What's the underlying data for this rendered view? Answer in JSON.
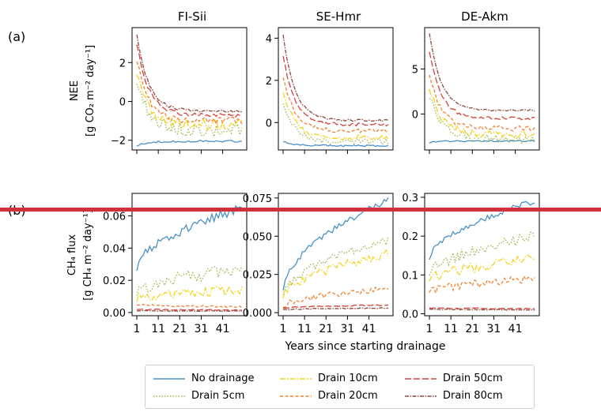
{
  "panel_labels": {
    "a": "(a)",
    "b": "(b)"
  },
  "site_titles": [
    "FI-Sii",
    "SE-Hmr",
    "DE-Akm"
  ],
  "row_a_ylabel": {
    "line1": "NEE",
    "line2": "[g CO₂ m⁻² day⁻¹]"
  },
  "row_b_ylabel": {
    "line1": "CH₄ flux",
    "line2": "[g CH₄ m⁻² day⁻¹]"
  },
  "xlabel": "Years since starting drainage",
  "legend": [
    {
      "name": "No drainage",
      "color": "#4a90c8",
      "dash": ""
    },
    {
      "name": "Drain 5cm",
      "color": "#9fb54c",
      "dash": "1.5,2"
    },
    {
      "name": "Drain 10cm",
      "color": "#f5d21c",
      "dash": "7,2,1.5,2"
    },
    {
      "name": "Drain 20cm",
      "color": "#f0812e",
      "dash": "4,2.5"
    },
    {
      "name": "Drain 50cm",
      "color": "#d6403c",
      "dash": "8,3"
    },
    {
      "name": "Drain 80cm",
      "color": "#8b4a3c",
      "dash": "5,1.5,1.5,1.5"
    }
  ],
  "chart_data": [
    {
      "type": "line",
      "panel": "(a)",
      "title": "FI-Sii",
      "x": [
        1,
        50
      ],
      "xticks": [
        "1",
        "11",
        "21",
        "31",
        "41"
      ],
      "ylim": [
        -2.5,
        3.8
      ],
      "yticks": [
        "−2",
        "0",
        "2"
      ],
      "ytick_values": [
        -2,
        0,
        2
      ],
      "series": [
        {
          "name": "No drainage",
          "start": -2.25,
          "end": -2.05,
          "noise": 0.05
        },
        {
          "name": "Drain 5cm",
          "start": 1.2,
          "end": -1.5,
          "noise": 0.35
        },
        {
          "name": "Drain 10cm",
          "start": 1.6,
          "end": -1.2,
          "noise": 0.28
        },
        {
          "name": "Drain 20cm",
          "start": 2.2,
          "end": -1.0,
          "noise": 0.18
        },
        {
          "name": "Drain 50cm",
          "start": 3.0,
          "end": -0.7,
          "noise": 0.1
        },
        {
          "name": "Drain 80cm",
          "start": 3.5,
          "end": -0.5,
          "noise": 0.07
        }
      ]
    },
    {
      "type": "line",
      "panel": "(a)",
      "title": "SE-Hmr",
      "x": [
        1,
        50
      ],
      "xticks": [
        "1",
        "11",
        "21",
        "31",
        "41"
      ],
      "ylim": [
        -1.3,
        4.5
      ],
      "yticks": [
        "0",
        "2",
        "4"
      ],
      "ytick_values": [
        0,
        2,
        4
      ],
      "series": [
        {
          "name": "No drainage",
          "start": -0.9,
          "end": -1.1,
          "noise": 0.04
        },
        {
          "name": "Drain 5cm",
          "start": 1.0,
          "end": -0.9,
          "noise": 0.15
        },
        {
          "name": "Drain 10cm",
          "start": 1.5,
          "end": -0.7,
          "noise": 0.12
        },
        {
          "name": "Drain 20cm",
          "start": 2.2,
          "end": -0.4,
          "noise": 0.1
        },
        {
          "name": "Drain 50cm",
          "start": 3.2,
          "end": -0.1,
          "noise": 0.07
        },
        {
          "name": "Drain 80cm",
          "start": 4.2,
          "end": 0.1,
          "noise": 0.05
        }
      ]
    },
    {
      "type": "line",
      "panel": "(a)",
      "title": "DE-Akm",
      "x": [
        1,
        50
      ],
      "xticks": [
        "1",
        "11",
        "21",
        "31",
        "41"
      ],
      "ylim": [
        -4.0,
        9.6
      ],
      "yticks": [
        "0",
        "5"
      ],
      "ytick_values": [
        0,
        5
      ],
      "series": [
        {
          "name": "No drainage",
          "start": -3.2,
          "end": -3.0,
          "noise": 0.1
        },
        {
          "name": "Drain 5cm",
          "start": 2.0,
          "end": -2.8,
          "noise": 0.55
        },
        {
          "name": "Drain 10cm",
          "start": 3.0,
          "end": -2.2,
          "noise": 0.45
        },
        {
          "name": "Drain 20cm",
          "start": 4.5,
          "end": -1.6,
          "noise": 0.3
        },
        {
          "name": "Drain 50cm",
          "start": 7.0,
          "end": -0.5,
          "noise": 0.18
        },
        {
          "name": "Drain 80cm",
          "start": 9.0,
          "end": 0.4,
          "noise": 0.1
        }
      ]
    },
    {
      "type": "line",
      "panel": "(b)",
      "title": "FI-Sii",
      "x": [
        1,
        50
      ],
      "xticks": [
        "1",
        "11",
        "21",
        "31",
        "41"
      ],
      "ylim": [
        -0.002,
        0.074
      ],
      "yticks": [
        "0.00",
        "0.02",
        "0.04",
        "0.06"
      ],
      "ytick_values": [
        0,
        0.02,
        0.04,
        0.06
      ],
      "series": [
        {
          "name": "No drainage",
          "start": 0.027,
          "end": 0.065,
          "noise": 0.003
        },
        {
          "name": "Drain 5cm",
          "start": 0.012,
          "end": 0.027,
          "noise": 0.004
        },
        {
          "name": "Drain 10cm",
          "start": 0.008,
          "end": 0.014,
          "noise": 0.003
        },
        {
          "name": "Drain 20cm",
          "start": 0.005,
          "end": 0.0035,
          "noise": 0.0006
        },
        {
          "name": "Drain 50cm",
          "start": 0.002,
          "end": 0.0015,
          "noise": 0.0003
        },
        {
          "name": "Drain 80cm",
          "start": 0.001,
          "end": 0.001,
          "noise": 0.0002
        }
      ]
    },
    {
      "type": "line",
      "panel": "(b)",
      "title": "SE-Hmr",
      "x": [
        1,
        50
      ],
      "xticks": [
        "1",
        "11",
        "21",
        "31",
        "41"
      ],
      "ylim": [
        -0.002,
        0.078
      ],
      "yticks": [
        "0.000",
        "0.025",
        "0.050",
        "0.075"
      ],
      "ytick_values": [
        0,
        0.025,
        0.05,
        0.075
      ],
      "series": [
        {
          "name": "No drainage",
          "start": 0.015,
          "end": 0.074,
          "noise": 0.002
        },
        {
          "name": "Drain 5cm",
          "start": 0.012,
          "end": 0.047,
          "noise": 0.003
        },
        {
          "name": "Drain 10cm",
          "start": 0.01,
          "end": 0.039,
          "noise": 0.003
        },
        {
          "name": "Drain 20cm",
          "start": 0.004,
          "end": 0.016,
          "noise": 0.002
        },
        {
          "name": "Drain 50cm",
          "start": 0.003,
          "end": 0.005,
          "noise": 0.0004
        },
        {
          "name": "Drain 80cm",
          "start": 0.002,
          "end": 0.003,
          "noise": 0.0003
        }
      ]
    },
    {
      "type": "line",
      "panel": "(b)",
      "title": "DE-Akm",
      "x": [
        1,
        50
      ],
      "xticks": [
        "1",
        "11",
        "21",
        "31",
        "41"
      ],
      "ylim": [
        -0.005,
        0.31
      ],
      "yticks": [
        "0.0",
        "0.1",
        "0.2",
        "0.3"
      ],
      "ytick_values": [
        0,
        0.1,
        0.2,
        0.3
      ],
      "series": [
        {
          "name": "No drainage",
          "start": 0.14,
          "end": 0.29,
          "noise": 0.007
        },
        {
          "name": "Drain 5cm",
          "start": 0.1,
          "end": 0.2,
          "noise": 0.015
        },
        {
          "name": "Drain 10cm",
          "start": 0.085,
          "end": 0.14,
          "noise": 0.013
        },
        {
          "name": "Drain 20cm",
          "start": 0.055,
          "end": 0.09,
          "noise": 0.01
        },
        {
          "name": "Drain 50cm",
          "start": 0.015,
          "end": 0.013,
          "noise": 0.001
        },
        {
          "name": "Drain 80cm",
          "start": 0.012,
          "end": 0.01,
          "noise": 0.001
        }
      ]
    }
  ]
}
